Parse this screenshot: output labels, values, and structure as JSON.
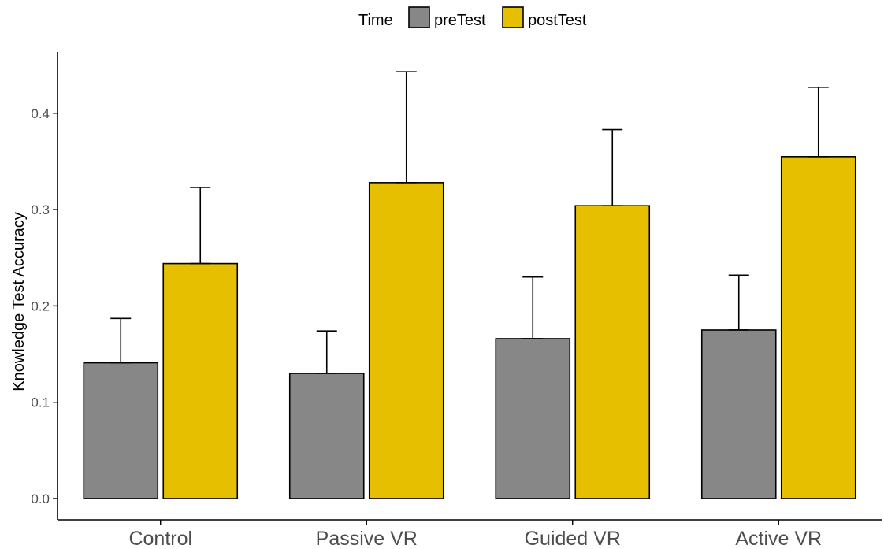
{
  "chart_data": {
    "type": "bar",
    "title": "",
    "xlabel": "",
    "ylabel": "Knowledge Test Accuracy",
    "categories": [
      "Control",
      "Passive VR",
      "Guided VR",
      "Active VR"
    ],
    "ylim": [
      -0.022,
      0.47
    ],
    "yticks": [
      0.0,
      0.1,
      0.2,
      0.3,
      0.4
    ],
    "ytick_labels": [
      "0.0",
      "0.1",
      "0.2",
      "0.3",
      "0.4"
    ],
    "legend": {
      "title": "Time",
      "position": "top"
    },
    "series": [
      {
        "name": "preTest",
        "color": "#878787",
        "values": [
          0.141,
          0.13,
          0.166,
          0.175
        ],
        "error_upper": [
          0.187,
          0.174,
          0.23,
          0.232
        ]
      },
      {
        "name": "postTest",
        "color": "#E6C000",
        "values": [
          0.244,
          0.328,
          0.304,
          0.355
        ],
        "error_upper": [
          0.323,
          0.443,
          0.383,
          0.427
        ]
      }
    ],
    "grid": false
  }
}
